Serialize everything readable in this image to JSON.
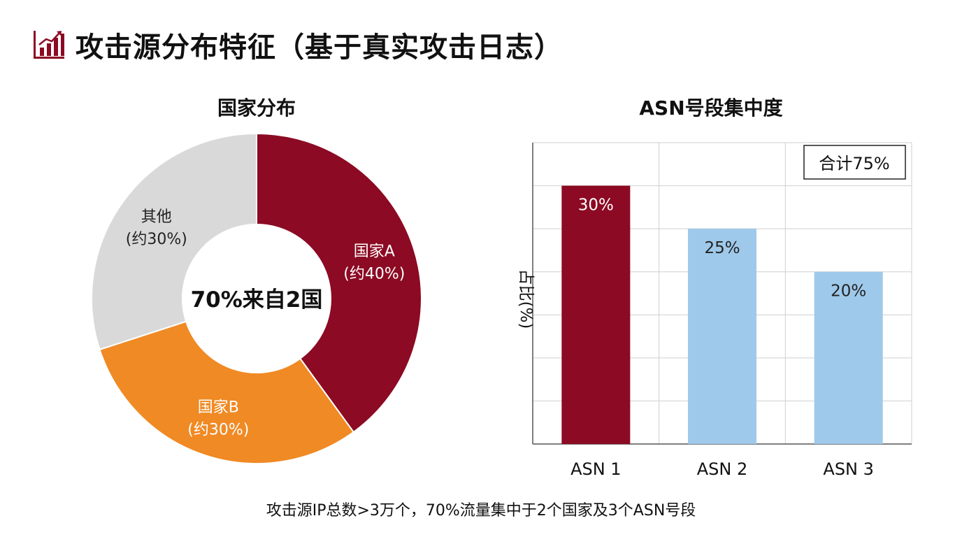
{
  "page": {
    "title": "攻击源分布特征（基于真实攻击日志）",
    "icon": "bar-chart-trend-icon",
    "footer": "攻击源IP总数>3万个，70%流量集中于2个国家及3个ASN号段"
  },
  "colors": {
    "accent": "#8c0a23",
    "orange": "#f08a24",
    "gray": "#d9d9d9",
    "blue": "#9ec9ea"
  },
  "chart_data": [
    {
      "type": "pie",
      "title": "国家分布",
      "center_label": "70%来自2国",
      "slices": [
        {
          "name": "国家A",
          "label": "(约40%)",
          "value": 40,
          "color": "#8c0a23",
          "text_color": "#ffffff"
        },
        {
          "name": "国家B",
          "label": "(约30%)",
          "value": 30,
          "color": "#f08a24",
          "text_color": "#ffffff"
        },
        {
          "name": "其他",
          "label": "(约30%)",
          "value": 30,
          "color": "#d9d9d9",
          "text_color": "#222222"
        }
      ]
    },
    {
      "type": "bar",
      "title": "ASN号段集中度",
      "ylabel": "占比(%)",
      "ylim": [
        0,
        35
      ],
      "categories": [
        "ASN 1",
        "ASN 2",
        "ASN 3"
      ],
      "values": [
        30,
        25,
        20
      ],
      "data_labels": [
        "30%",
        "25%",
        "20%"
      ],
      "bar_colors": [
        "#8c0a23",
        "#9ec9ea",
        "#9ec9ea"
      ],
      "label_colors": [
        "#ffffff",
        "#222222",
        "#222222"
      ],
      "annotation": "合计75%",
      "grid": true
    }
  ]
}
